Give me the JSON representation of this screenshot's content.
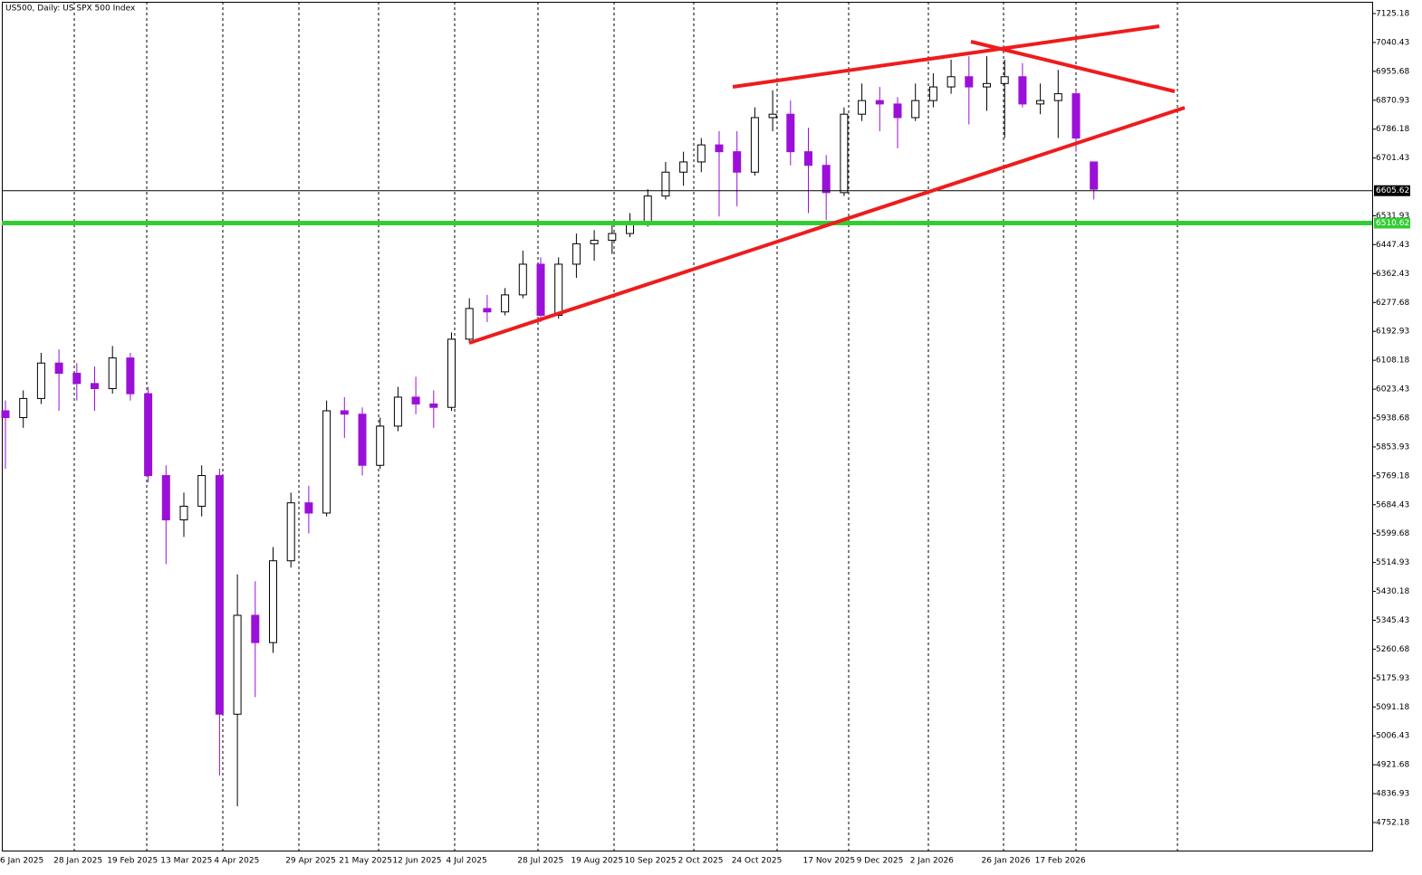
{
  "chart_data": {
    "type": "candlestick",
    "title": "US500, Daily:  US SPX 500 Index",
    "categories": [
      "6 Jan 2025",
      null,
      null,
      "28 Jan 2025",
      null,
      null,
      "19 Feb 2025",
      null,
      null,
      "13 Mar 2025",
      null,
      null,
      "4 Apr 2025",
      null,
      null,
      null,
      "29 Apr 2025",
      null,
      null,
      "21 May 2025",
      null,
      null,
      "12 Jun 2025",
      null,
      null,
      "4 Jul 2025",
      null,
      null,
      null,
      "28 Jul 2025",
      null,
      null,
      "19 Aug 2025",
      null,
      null,
      "10 Sep 2025",
      null,
      null,
      "2 Oct 2025",
      null,
      null,
      "24 Oct 2025",
      null,
      null,
      null,
      "17 Nov 2025",
      null,
      null,
      "9 Dec 2025",
      null,
      null,
      "2 Jan 2026",
      null,
      null,
      null,
      "26 Jan 2026",
      null,
      null,
      "17 Feb 2026",
      null,
      null,
      null
    ],
    "open": [
      5960,
      5940,
      5996,
      6100,
      6070,
      6040,
      6025,
      6115,
      6010,
      5770,
      5640,
      5680,
      5770,
      5070,
      5360,
      5280,
      5520,
      5690,
      5660,
      5960,
      5950,
      5800,
      5915,
      6000,
      5980,
      5970,
      6170,
      6260,
      6250,
      6300,
      6390,
      6240,
      6390,
      6450,
      6460,
      6480,
      6510,
      6590,
      6660,
      6690,
      6740,
      6720,
      6660,
      6820,
      6830,
      6720,
      6680,
      6600,
      6830,
      6870,
      6860,
      6820,
      6870,
      6910,
      6940,
      6910,
      6920,
      6940,
      6860,
      6870,
      6890,
      6690
    ],
    "high": [
      5990,
      6020,
      6130,
      6140,
      6100,
      6090,
      6150,
      6130,
      6030,
      5800,
      5720,
      5800,
      5790,
      5480,
      5460,
      5560,
      5720,
      5740,
      5990,
      6000,
      5970,
      5940,
      6030,
      6060,
      6020,
      6190,
      6290,
      6300,
      6320,
      6430,
      6410,
      6410,
      6480,
      6490,
      6510,
      6540,
      6610,
      6690,
      6720,
      6760,
      6780,
      6780,
      6850,
      6900,
      6870,
      6790,
      6710,
      6850,
      6920,
      6910,
      6880,
      6920,
      6950,
      6990,
      7000,
      7000,
      6990,
      6980,
      6920,
      6960,
      6900,
      6690
    ],
    "low": [
      5790,
      5910,
      5980,
      5960,
      5990,
      5960,
      6010,
      5990,
      5750,
      5510,
      5590,
      5650,
      4890,
      4800,
      5120,
      5250,
      5500,
      5600,
      5650,
      5880,
      5770,
      5790,
      5900,
      5950,
      5910,
      5960,
      6160,
      6220,
      6240,
      6290,
      6220,
      6230,
      6350,
      6400,
      6420,
      6470,
      6500,
      6580,
      6620,
      6660,
      6530,
      6560,
      6650,
      6780,
      6680,
      6540,
      6520,
      6590,
      6810,
      6780,
      6730,
      6810,
      6850,
      6890,
      6800,
      6840,
      6760,
      6850,
      6830,
      6760,
      6720,
      6580
    ],
    "close": [
      5940,
      5996,
      6100,
      6070,
      6040,
      6025,
      6115,
      6010,
      5770,
      5640,
      5680,
      5770,
      5070,
      5360,
      5280,
      5520,
      5690,
      5660,
      5960,
      5950,
      5800,
      5915,
      6000,
      5980,
      5970,
      6170,
      6260,
      6250,
      6300,
      6390,
      6240,
      6390,
      6450,
      6460,
      6480,
      6510,
      6590,
      6660,
      6690,
      6740,
      6720,
      6660,
      6820,
      6830,
      6720,
      6680,
      6600,
      6830,
      6870,
      6860,
      6820,
      6870,
      6910,
      6940,
      6910,
      6920,
      6940,
      6860,
      6870,
      6890,
      6760,
      6610
    ],
    "up_color": "#000000",
    "down_color": "#9b10d8",
    "ylim": [
      4669.9,
      7159.7
    ],
    "yticks": [
      7125.18,
      7040.43,
      6955.68,
      6870.93,
      6786.18,
      6701.43,
      6531.93,
      6447.43,
      6362.43,
      6277.68,
      6192.93,
      6108.18,
      6023.43,
      5938.68,
      5853.93,
      5769.18,
      5684.43,
      5599.68,
      5514.93,
      5430.18,
      5345.43,
      5260.68,
      5175.93,
      5091.18,
      5006.43,
      4921.68,
      4836.93,
      4752.18
    ],
    "price_lines": [
      {
        "value": 6605.62,
        "color": "#000000"
      },
      {
        "value": 6510.62,
        "color": "#33cc33"
      }
    ]
  }
}
